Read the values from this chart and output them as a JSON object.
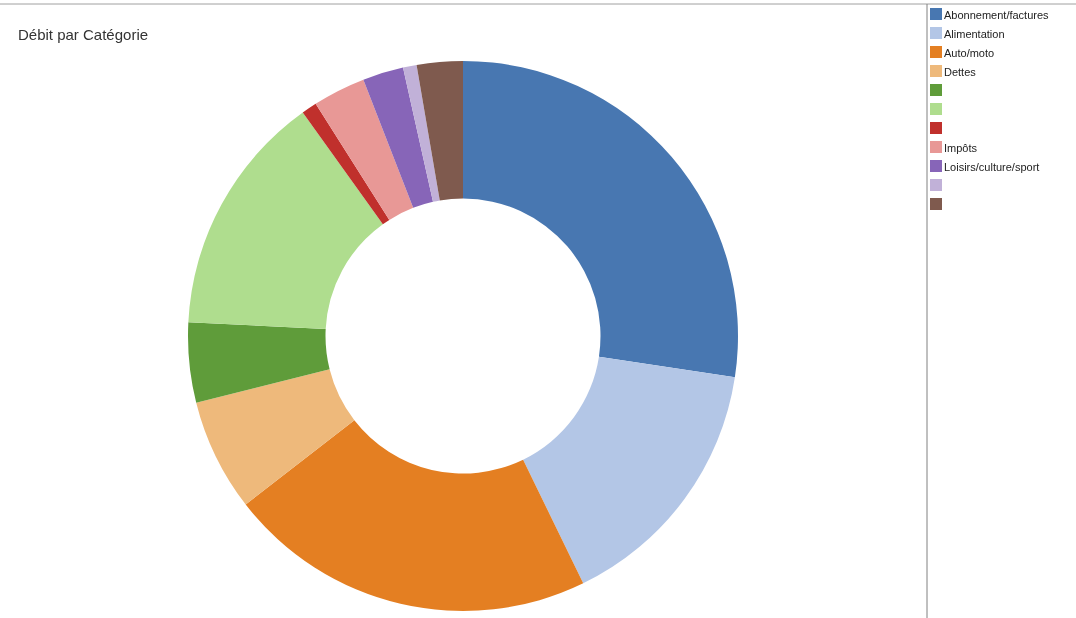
{
  "chart_data": {
    "type": "donut",
    "title": "Débit par Catégorie",
    "categories": [
      "Abonnement/factures",
      "Alimentation",
      "Auto/moto",
      "Dettes",
      null,
      null,
      null,
      "Impôts",
      "Loisirs/culture/sport",
      null,
      null
    ],
    "values": [
      27.4,
      15.4,
      21.7,
      6.6,
      4.7,
      14.3,
      0.9,
      3.1,
      2.4,
      0.8,
      2.7
    ],
    "colors": [
      "#4877b1",
      "#b3c6e6",
      "#e47f22",
      "#eeb97b",
      "#5f9c3a",
      "#afdd8e",
      "#c0302c",
      "#e89896",
      "#8765b8",
      "#c1b1d8",
      "#7f5a4e"
    ],
    "legend": "right"
  }
}
